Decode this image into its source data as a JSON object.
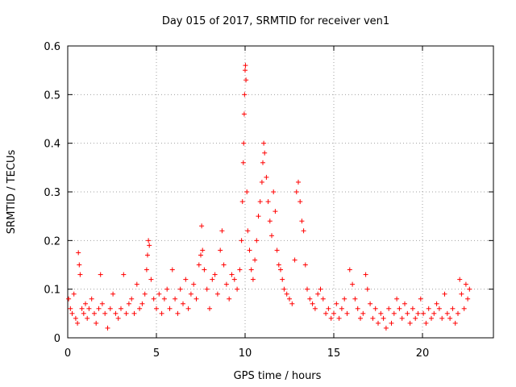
{
  "chart_data": {
    "type": "scatter",
    "title": "Day 015 of 2017, SRMTID for receiver ven1",
    "xlabel": "GPS time / hours",
    "ylabel": "SRMTID / TECUs",
    "xlim": [
      0,
      24
    ],
    "ylim": [
      0,
      0.6
    ],
    "xticks": [
      0,
      5,
      10,
      15,
      20
    ],
    "yticks": [
      0,
      0.1,
      0.2,
      0.3,
      0.4,
      0.5,
      0.6
    ],
    "xtick_labels": [
      "0",
      "5",
      "10",
      "15",
      "20"
    ],
    "ytick_labels": [
      "0",
      "0.1",
      "0.2",
      "0.3",
      "0.4",
      "0.5",
      "0.6"
    ],
    "grid": true,
    "marker": "+",
    "color": "#ff0000",
    "series": [
      {
        "name": "ven1",
        "points": [
          [
            0.05,
            0.08
          ],
          [
            0.15,
            0.06
          ],
          [
            0.25,
            0.05
          ],
          [
            0.35,
            0.09
          ],
          [
            0.45,
            0.04
          ],
          [
            0.55,
            0.03
          ],
          [
            0.6,
            0.175
          ],
          [
            0.65,
            0.15
          ],
          [
            0.7,
            0.13
          ],
          [
            0.8,
            0.06
          ],
          [
            0.9,
            0.05
          ],
          [
            1.0,
            0.07
          ],
          [
            1.1,
            0.04
          ],
          [
            1.2,
            0.06
          ],
          [
            1.35,
            0.08
          ],
          [
            1.5,
            0.05
          ],
          [
            1.6,
            0.03
          ],
          [
            1.75,
            0.06
          ],
          [
            1.85,
            0.13
          ],
          [
            1.95,
            0.07
          ],
          [
            2.1,
            0.05
          ],
          [
            2.25,
            0.02
          ],
          [
            2.4,
            0.06
          ],
          [
            2.55,
            0.09
          ],
          [
            2.7,
            0.05
          ],
          [
            2.85,
            0.04
          ],
          [
            3.0,
            0.06
          ],
          [
            3.15,
            0.13
          ],
          [
            3.3,
            0.05
          ],
          [
            3.45,
            0.07
          ],
          [
            3.6,
            0.08
          ],
          [
            3.75,
            0.05
          ],
          [
            3.9,
            0.11
          ],
          [
            4.05,
            0.06
          ],
          [
            4.2,
            0.07
          ],
          [
            4.35,
            0.09
          ],
          [
            4.45,
            0.14
          ],
          [
            4.5,
            0.17
          ],
          [
            4.55,
            0.2
          ],
          [
            4.6,
            0.19
          ],
          [
            4.7,
            0.12
          ],
          [
            4.85,
            0.08
          ],
          [
            5.0,
            0.06
          ],
          [
            5.15,
            0.09
          ],
          [
            5.3,
            0.05
          ],
          [
            5.45,
            0.08
          ],
          [
            5.6,
            0.1
          ],
          [
            5.75,
            0.06
          ],
          [
            5.9,
            0.14
          ],
          [
            6.05,
            0.08
          ],
          [
            6.2,
            0.05
          ],
          [
            6.35,
            0.1
          ],
          [
            6.5,
            0.07
          ],
          [
            6.65,
            0.12
          ],
          [
            6.8,
            0.06
          ],
          [
            6.95,
            0.09
          ],
          [
            7.1,
            0.11
          ],
          [
            7.25,
            0.08
          ],
          [
            7.4,
            0.15
          ],
          [
            7.5,
            0.17
          ],
          [
            7.55,
            0.23
          ],
          [
            7.6,
            0.18
          ],
          [
            7.7,
            0.14
          ],
          [
            7.85,
            0.1
          ],
          [
            8.0,
            0.06
          ],
          [
            8.15,
            0.12
          ],
          [
            8.3,
            0.13
          ],
          [
            8.45,
            0.09
          ],
          [
            8.6,
            0.18
          ],
          [
            8.7,
            0.22
          ],
          [
            8.8,
            0.15
          ],
          [
            8.95,
            0.11
          ],
          [
            9.1,
            0.08
          ],
          [
            9.25,
            0.13
          ],
          [
            9.4,
            0.12
          ],
          [
            9.55,
            0.1
          ],
          [
            9.7,
            0.14
          ],
          [
            9.8,
            0.2
          ],
          [
            9.85,
            0.28
          ],
          [
            9.9,
            0.36
          ],
          [
            9.92,
            0.4
          ],
          [
            9.95,
            0.46
          ],
          [
            9.97,
            0.5
          ],
          [
            10.0,
            0.55
          ],
          [
            10.02,
            0.56
          ],
          [
            10.05,
            0.53
          ],
          [
            10.1,
            0.3
          ],
          [
            10.15,
            0.22
          ],
          [
            10.25,
            0.18
          ],
          [
            10.35,
            0.14
          ],
          [
            10.45,
            0.12
          ],
          [
            10.55,
            0.16
          ],
          [
            10.65,
            0.2
          ],
          [
            10.75,
            0.25
          ],
          [
            10.85,
            0.28
          ],
          [
            10.95,
            0.32
          ],
          [
            11.0,
            0.36
          ],
          [
            11.05,
            0.4
          ],
          [
            11.1,
            0.38
          ],
          [
            11.2,
            0.33
          ],
          [
            11.3,
            0.28
          ],
          [
            11.4,
            0.24
          ],
          [
            11.5,
            0.21
          ],
          [
            11.6,
            0.3
          ],
          [
            11.7,
            0.26
          ],
          [
            11.8,
            0.18
          ],
          [
            11.9,
            0.15
          ],
          [
            12.0,
            0.14
          ],
          [
            12.1,
            0.12
          ],
          [
            12.2,
            0.1
          ],
          [
            12.35,
            0.09
          ],
          [
            12.5,
            0.08
          ],
          [
            12.65,
            0.07
          ],
          [
            12.8,
            0.16
          ],
          [
            12.9,
            0.3
          ],
          [
            13.0,
            0.32
          ],
          [
            13.1,
            0.28
          ],
          [
            13.2,
            0.24
          ],
          [
            13.3,
            0.22
          ],
          [
            13.4,
            0.15
          ],
          [
            13.5,
            0.1
          ],
          [
            13.65,
            0.08
          ],
          [
            13.8,
            0.07
          ],
          [
            13.95,
            0.06
          ],
          [
            14.1,
            0.09
          ],
          [
            14.25,
            0.1
          ],
          [
            14.4,
            0.08
          ],
          [
            14.55,
            0.05
          ],
          [
            14.7,
            0.06
          ],
          [
            14.85,
            0.04
          ],
          [
            15.0,
            0.05
          ],
          [
            15.15,
            0.07
          ],
          [
            15.3,
            0.04
          ],
          [
            15.45,
            0.06
          ],
          [
            15.6,
            0.08
          ],
          [
            15.75,
            0.05
          ],
          [
            15.9,
            0.14
          ],
          [
            16.05,
            0.11
          ],
          [
            16.2,
            0.08
          ],
          [
            16.35,
            0.06
          ],
          [
            16.5,
            0.04
          ],
          [
            16.65,
            0.05
          ],
          [
            16.8,
            0.13
          ],
          [
            16.9,
            0.1
          ],
          [
            17.05,
            0.07
          ],
          [
            17.2,
            0.04
          ],
          [
            17.35,
            0.06
          ],
          [
            17.5,
            0.03
          ],
          [
            17.65,
            0.05
          ],
          [
            17.8,
            0.04
          ],
          [
            17.95,
            0.02
          ],
          [
            18.1,
            0.06
          ],
          [
            18.25,
            0.03
          ],
          [
            18.4,
            0.05
          ],
          [
            18.55,
            0.08
          ],
          [
            18.7,
            0.06
          ],
          [
            18.85,
            0.04
          ],
          [
            19.0,
            0.07
          ],
          [
            19.15,
            0.05
          ],
          [
            19.3,
            0.03
          ],
          [
            19.45,
            0.06
          ],
          [
            19.6,
            0.04
          ],
          [
            19.75,
            0.05
          ],
          [
            19.9,
            0.08
          ],
          [
            20.05,
            0.05
          ],
          [
            20.2,
            0.03
          ],
          [
            20.35,
            0.06
          ],
          [
            20.5,
            0.04
          ],
          [
            20.65,
            0.05
          ],
          [
            20.8,
            0.07
          ],
          [
            20.95,
            0.06
          ],
          [
            21.1,
            0.04
          ],
          [
            21.25,
            0.09
          ],
          [
            21.4,
            0.05
          ],
          [
            21.55,
            0.04
          ],
          [
            21.7,
            0.06
          ],
          [
            21.85,
            0.03
          ],
          [
            22.0,
            0.05
          ],
          [
            22.1,
            0.12
          ],
          [
            22.2,
            0.09
          ],
          [
            22.35,
            0.06
          ],
          [
            22.45,
            0.11
          ],
          [
            22.55,
            0.08
          ],
          [
            22.65,
            0.1
          ]
        ]
      }
    ]
  }
}
